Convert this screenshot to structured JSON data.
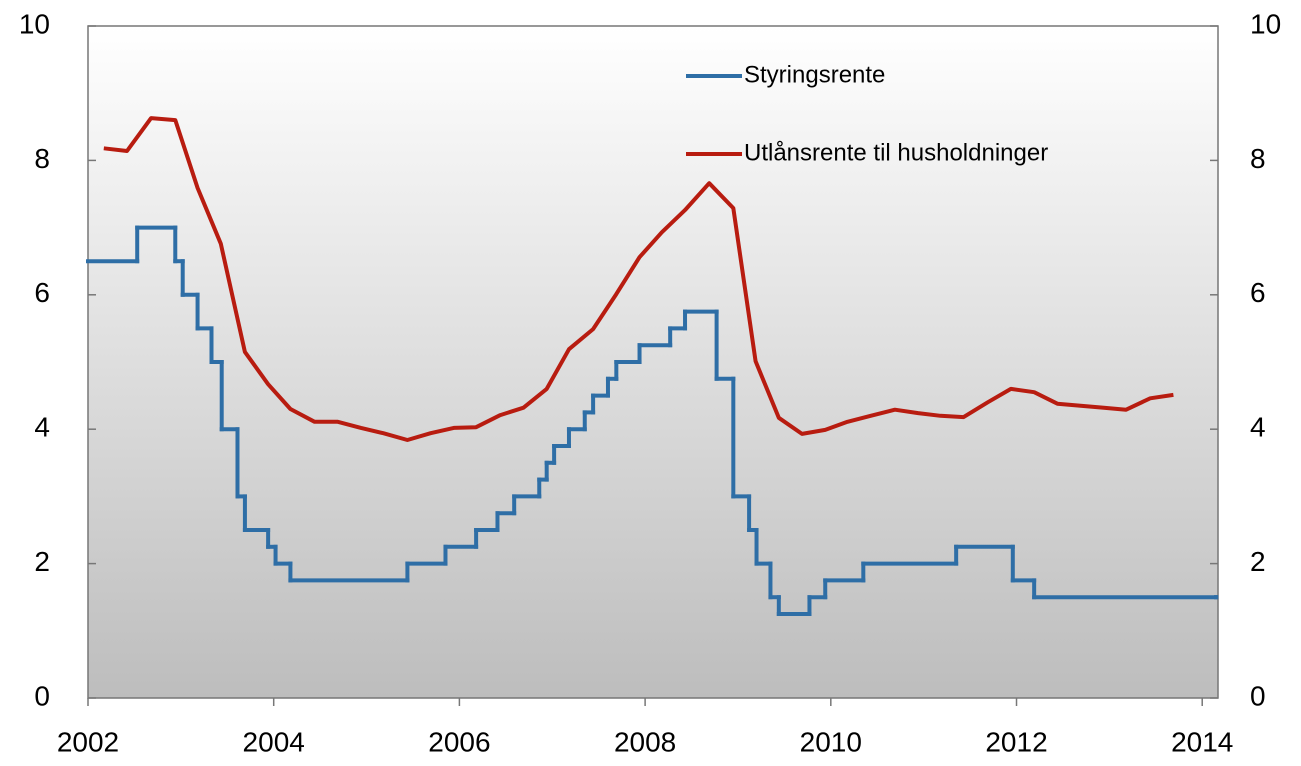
{
  "chart_data": {
    "type": "line",
    "xlim": [
      2002,
      2014.17
    ],
    "xticks": [
      2002,
      2004,
      2006,
      2008,
      2010,
      2012,
      2014
    ],
    "ylim": [
      0,
      10
    ],
    "yticks": [
      0,
      2,
      4,
      6,
      8,
      10
    ],
    "y2lim": [
      0,
      10
    ],
    "y2ticks": [
      0,
      2,
      4,
      6,
      8,
      10
    ],
    "legend": "upper right",
    "series": [
      {
        "name": "Styringsrente",
        "color": "#2e6ea6",
        "step": true,
        "x": [
          2002,
          2002.53,
          2002.94,
          2003.02,
          2003.18,
          2003.33,
          2003.44,
          2003.61,
          2003.69,
          2003.94,
          2004.02,
          2004.18,
          2005.44,
          2005.85,
          2006.18,
          2006.41,
          2006.59,
          2006.86,
          2006.94,
          2007.02,
          2007.18,
          2007.35,
          2007.44,
          2007.6,
          2007.69,
          2007.94,
          2008.27,
          2008.43,
          2008.77,
          2008.95,
          2009.12,
          2009.2,
          2009.35,
          2009.44,
          2009.77,
          2009.94,
          2010.35,
          2011.35,
          2011.96,
          2012.19,
          2014.15
        ],
        "values": [
          6.5,
          7.0,
          6.5,
          6.0,
          5.5,
          5.0,
          4.0,
          3.0,
          2.5,
          2.25,
          2.0,
          1.75,
          2.0,
          2.25,
          2.5,
          2.75,
          3.0,
          3.25,
          3.5,
          3.75,
          4.0,
          4.25,
          4.5,
          4.75,
          5.0,
          5.25,
          5.5,
          5.75,
          4.75,
          3.0,
          2.5,
          2.0,
          1.5,
          1.25,
          1.5,
          1.75,
          2.0,
          2.25,
          1.75,
          1.5,
          1.5
        ]
      },
      {
        "name": "Utlånsrente til husholdninger",
        "color": "#b81c10",
        "x": [
          2002.17,
          2002.42,
          2002.68,
          2002.94,
          2003.18,
          2003.43,
          2003.69,
          2003.94,
          2004.18,
          2004.44,
          2004.69,
          2004.94,
          2005.18,
          2005.44,
          2005.69,
          2005.94,
          2006.18,
          2006.44,
          2006.69,
          2006.94,
          2007.18,
          2007.44,
          2007.69,
          2007.94,
          2008.18,
          2008.43,
          2008.69,
          2008.95,
          2009.19,
          2009.44,
          2009.69,
          2009.94,
          2010.18,
          2010.43,
          2010.69,
          2010.94,
          2011.18,
          2011.43,
          2011.69,
          2011.94,
          2012.19,
          2012.44,
          2012.69,
          2012.94,
          2013.18,
          2013.44,
          2013.69
        ],
        "values": [
          8.18,
          8.14,
          8.63,
          8.6,
          7.59,
          6.76,
          5.15,
          4.67,
          4.3,
          4.11,
          4.11,
          4.02,
          3.94,
          3.84,
          3.94,
          4.02,
          4.03,
          4.21,
          4.32,
          4.6,
          5.19,
          5.49,
          6.01,
          6.56,
          6.93,
          7.26,
          7.66,
          7.29,
          5.01,
          4.17,
          3.93,
          3.99,
          4.11,
          4.2,
          4.29,
          4.24,
          4.2,
          4.18,
          4.4,
          4.6,
          4.55,
          4.38,
          4.35,
          4.32,
          4.29,
          4.46,
          4.51
        ]
      }
    ]
  }
}
